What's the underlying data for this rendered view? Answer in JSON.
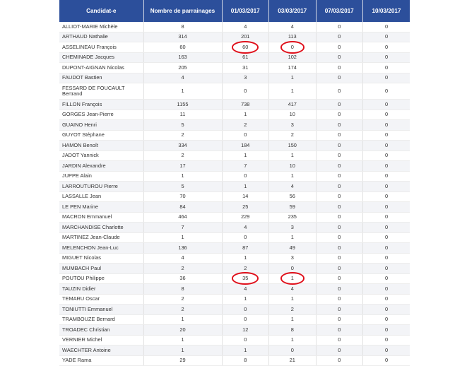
{
  "headers": [
    "Candidat-e",
    "Nombre de parrainages",
    "01/03/2017",
    "03/03/2017",
    "07/03/2017",
    "10/03/2017"
  ],
  "rows": [
    {
      "name": "ALLIOT-MARIE Michèle",
      "total": "8",
      "d1": "4",
      "d2": "4",
      "d3": "0",
      "d4": "0"
    },
    {
      "name": "ARTHAUD Nathalie",
      "total": "314",
      "d1": "201",
      "d2": "113",
      "d3": "0",
      "d4": "0"
    },
    {
      "name": "ASSELINEAU François",
      "total": "60",
      "d1": "60",
      "d2": "0",
      "d3": "0",
      "d4": "0"
    },
    {
      "name": "CHEMINADE Jacques",
      "total": "163",
      "d1": "61",
      "d2": "102",
      "d3": "0",
      "d4": "0"
    },
    {
      "name": "DUPONT-AIGNAN Nicolas",
      "total": "205",
      "d1": "31",
      "d2": "174",
      "d3": "0",
      "d4": "0"
    },
    {
      "name": "FAUDOT Bastien",
      "total": "4",
      "d1": "3",
      "d2": "1",
      "d3": "0",
      "d4": "0"
    },
    {
      "name": "FESSARD DE FOUCAULT Bertrand",
      "total": "1",
      "d1": "0",
      "d2": "1",
      "d3": "0",
      "d4": "0"
    },
    {
      "name": "FILLON François",
      "total": "1155",
      "d1": "738",
      "d2": "417",
      "d3": "0",
      "d4": "0"
    },
    {
      "name": "GORGES Jean-Pierre",
      "total": "11",
      "d1": "1",
      "d2": "10",
      "d3": "0",
      "d4": "0"
    },
    {
      "name": "GUAINO Henri",
      "total": "5",
      "d1": "2",
      "d2": "3",
      "d3": "0",
      "d4": "0"
    },
    {
      "name": "GUYOT Stéphane",
      "total": "2",
      "d1": "0",
      "d2": "2",
      "d3": "0",
      "d4": "0"
    },
    {
      "name": "HAMON Benoît",
      "total": "334",
      "d1": "184",
      "d2": "150",
      "d3": "0",
      "d4": "0"
    },
    {
      "name": "JADOT Yannick",
      "total": "2",
      "d1": "1",
      "d2": "1",
      "d3": "0",
      "d4": "0"
    },
    {
      "name": "JARDIN Alexandre",
      "total": "17",
      "d1": "7",
      "d2": "10",
      "d3": "0",
      "d4": "0"
    },
    {
      "name": "JUPPE Alain",
      "total": "1",
      "d1": "0",
      "d2": "1",
      "d3": "0",
      "d4": "0"
    },
    {
      "name": "LARROUTUROU Pierre",
      "total": "5",
      "d1": "1",
      "d2": "4",
      "d3": "0",
      "d4": "0"
    },
    {
      "name": "LASSALLE Jean",
      "total": "70",
      "d1": "14",
      "d2": "56",
      "d3": "0",
      "d4": "0"
    },
    {
      "name": "LE PEN Marine",
      "total": "84",
      "d1": "25",
      "d2": "59",
      "d3": "0",
      "d4": "0"
    },
    {
      "name": "MACRON Emmanuel",
      "total": "464",
      "d1": "229",
      "d2": "235",
      "d3": "0",
      "d4": "0"
    },
    {
      "name": "MARCHANDISE Charlotte",
      "total": "7",
      "d1": "4",
      "d2": "3",
      "d3": "0",
      "d4": "0"
    },
    {
      "name": "MARTINEZ Jean-Claude",
      "total": "1",
      "d1": "0",
      "d2": "1",
      "d3": "0",
      "d4": "0"
    },
    {
      "name": "MELENCHON Jean-Luc",
      "total": "136",
      "d1": "87",
      "d2": "49",
      "d3": "0",
      "d4": "0"
    },
    {
      "name": "MIGUET Nicolas",
      "total": "4",
      "d1": "1",
      "d2": "3",
      "d3": "0",
      "d4": "0"
    },
    {
      "name": "MUMBACH Paul",
      "total": "2",
      "d1": "2",
      "d2": "0",
      "d3": "0",
      "d4": "0"
    },
    {
      "name": "POUTOU Philippe",
      "total": "36",
      "d1": "35",
      "d2": "1",
      "d3": "0",
      "d4": "0"
    },
    {
      "name": "TAUZIN Didier",
      "total": "8",
      "d1": "4",
      "d2": "4",
      "d3": "0",
      "d4": "0"
    },
    {
      "name": "TEMARU Oscar",
      "total": "2",
      "d1": "1",
      "d2": "1",
      "d3": "0",
      "d4": "0"
    },
    {
      "name": "TONIUTTI Emmanuel",
      "total": "2",
      "d1": "0",
      "d2": "2",
      "d3": "0",
      "d4": "0"
    },
    {
      "name": "TRAMBOUZE Bernard",
      "total": "1",
      "d1": "0",
      "d2": "1",
      "d3": "0",
      "d4": "0"
    },
    {
      "name": "TROADEC Christian",
      "total": "20",
      "d1": "12",
      "d2": "8",
      "d3": "0",
      "d4": "0"
    },
    {
      "name": "VERNIER Michel",
      "total": "1",
      "d1": "0",
      "d2": "1",
      "d3": "0",
      "d4": "0"
    },
    {
      "name": "WAECHTER Antoine",
      "total": "1",
      "d1": "1",
      "d2": "0",
      "d3": "0",
      "d4": "0"
    },
    {
      "name": "YADE Rama",
      "total": "29",
      "d1": "8",
      "d2": "21",
      "d3": "0",
      "d4": "0"
    }
  ],
  "highlighted_cells": [
    {
      "candidate": "ASSELINEAU François",
      "column": "01/03/2017"
    },
    {
      "candidate": "ASSELINEAU François",
      "column": "03/03/2017"
    },
    {
      "candidate": "POUTOU Philippe",
      "column": "01/03/2017"
    },
    {
      "candidate": "POUTOU Philippe",
      "column": "03/03/2017"
    }
  ],
  "colors": {
    "header_bg": "#2c4f9b",
    "header_text": "#ffffff",
    "highlight_circle": "#e0101b",
    "zebra": "#f3f4f7"
  }
}
